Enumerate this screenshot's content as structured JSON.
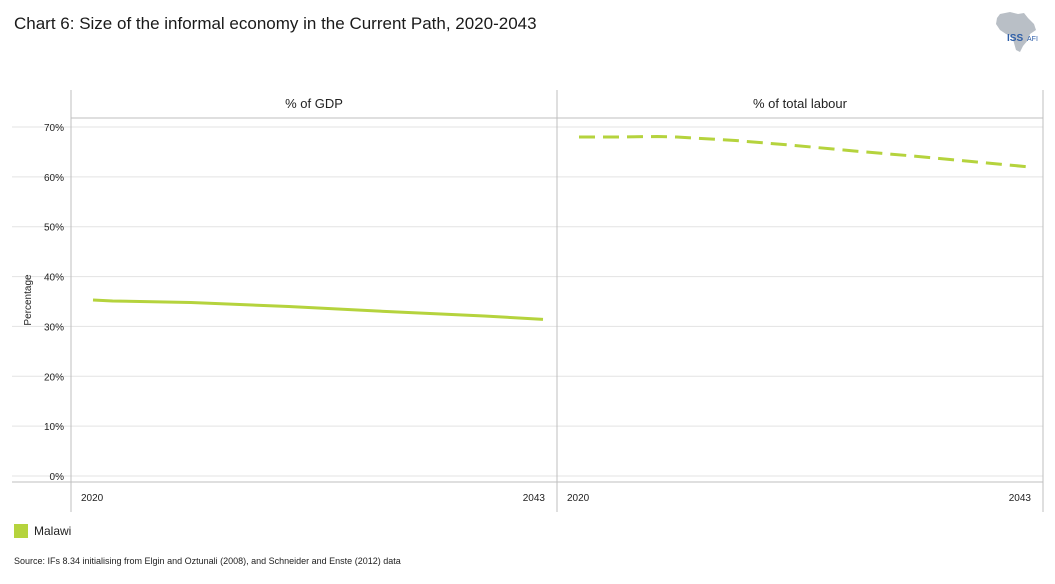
{
  "title": "Chart 6: Size of the informal economy in the Current Path, 2020-2043",
  "logo": {
    "text_main": "ISS",
    "text_sub": "AFI"
  },
  "source": "Source: IFs 8.34 initialising  from Elgin and Oztunali (2008), and Schneider and Enste (2012) data",
  "colors": {
    "series": "#b5d33d",
    "grid": "#e3e3e3",
    "axis": "#bfbfbf",
    "africa": "#b9bfc6",
    "iss": "#2f5fa8"
  },
  "chart_data": {
    "type": "line",
    "ylabel": "Percentage",
    "ylim": [
      0,
      70
    ],
    "yticks": [
      0,
      10,
      20,
      30,
      40,
      50,
      60,
      70
    ],
    "ytick_labels": [
      "0%",
      "10%",
      "20%",
      "30%",
      "40%",
      "50%",
      "60%",
      "70%"
    ],
    "x_labels": [
      "2020",
      "2043"
    ],
    "legend": [
      {
        "name": "Malawi",
        "color": "#b5d33d"
      }
    ],
    "panels": [
      {
        "title": "% of GDP",
        "series": [
          {
            "name": "Malawi",
            "style": "solid",
            "x": [
              2020,
              2021,
              2025,
              2030,
              2035,
              2040,
              2043
            ],
            "y": [
              35.3,
              35.1,
              34.8,
              34.0,
              33.0,
              32.1,
              31.4
            ]
          }
        ]
      },
      {
        "title": "% of total labour",
        "series": [
          {
            "name": "Malawi",
            "style": "dashed",
            "x": [
              2020,
              2022,
              2024,
              2025,
              2028,
              2031,
              2034,
              2037,
              2040,
              2043
            ],
            "y": [
              68.0,
              68.0,
              68.1,
              68.0,
              67.3,
              66.3,
              65.2,
              64.2,
              63.1,
              62.0
            ]
          }
        ]
      }
    ]
  }
}
